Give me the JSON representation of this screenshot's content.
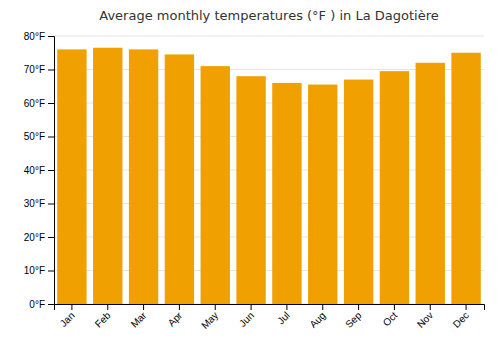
{
  "chart_data": {
    "type": "bar",
    "title": "Average monthly temperatures (°F ) in La Dagotière",
    "categories": [
      "Jan",
      "Feb",
      "Mar",
      "Apr",
      "May",
      "Jun",
      "Jul",
      "Aug",
      "Sep",
      "Oct",
      "Nov",
      "Dec"
    ],
    "values": [
      76,
      76.5,
      76,
      74.5,
      71,
      68,
      66,
      65.5,
      67,
      69.5,
      72,
      75
    ],
    "color": "#F0A000",
    "ylim": [
      0,
      80
    ],
    "yticks": [
      {
        "value": 0,
        "label": "0°F"
      },
      {
        "value": 10,
        "label": "10°F"
      },
      {
        "value": 20,
        "label": "20°F"
      },
      {
        "value": 30,
        "label": "30°F"
      },
      {
        "value": 40,
        "label": "40°F"
      },
      {
        "value": 50,
        "label": "50°F"
      },
      {
        "value": 60,
        "label": "60°F"
      },
      {
        "value": 70,
        "label": "70°F"
      },
      {
        "value": 80,
        "label": "80°F"
      }
    ],
    "grid": true
  }
}
